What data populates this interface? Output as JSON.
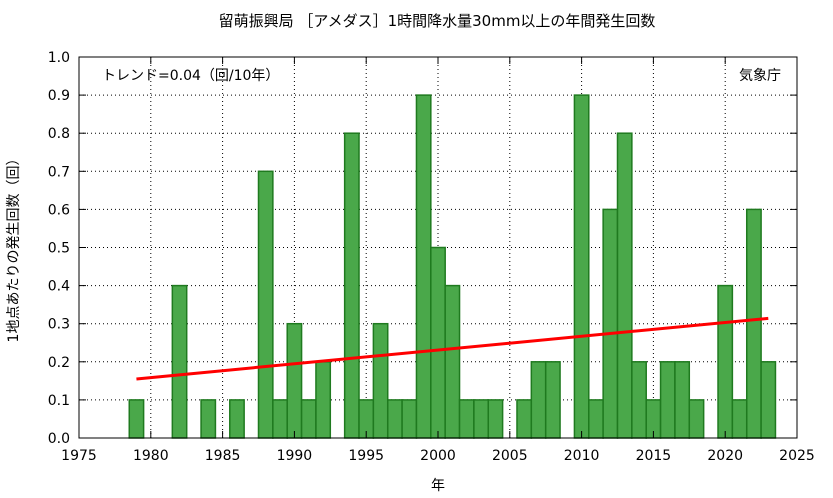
{
  "chart_data": {
    "type": "bar",
    "title": "留萌振興局 ［アメダス］1時間降水量30mm以上の年間発生回数",
    "xlabel": "年",
    "ylabel": "1地点あたりの発生回数（回）",
    "xlim": [
      1975,
      2025
    ],
    "ylim": [
      0.0,
      1.0
    ],
    "xticks": [
      1975,
      1980,
      1985,
      1990,
      1995,
      2000,
      2005,
      2010,
      2015,
      2020,
      2025
    ],
    "yticks": [
      0.0,
      0.1,
      0.2,
      0.3,
      0.4,
      0.5,
      0.6,
      0.7,
      0.8,
      0.9,
      1.0
    ],
    "grid": true,
    "x": [
      1979,
      1980,
      1981,
      1982,
      1983,
      1984,
      1985,
      1986,
      1987,
      1988,
      1989,
      1990,
      1991,
      1992,
      1993,
      1994,
      1995,
      1996,
      1997,
      1998,
      1999,
      2000,
      2001,
      2002,
      2003,
      2004,
      2005,
      2006,
      2007,
      2008,
      2009,
      2010,
      2011,
      2012,
      2013,
      2014,
      2015,
      2016,
      2017,
      2018,
      2019,
      2020,
      2021,
      2022,
      2023
    ],
    "values": [
      0.1,
      0,
      0,
      0.4,
      0,
      0.1,
      0,
      0.1,
      0,
      0.7,
      0.1,
      0.3,
      0.1,
      0.2,
      0,
      0.8,
      0.1,
      0.3,
      0.1,
      0.1,
      0.9,
      0.5,
      0.4,
      0.1,
      0.1,
      0.1,
      0,
      0.1,
      0.2,
      0.2,
      0,
      0.9,
      0.1,
      0.6,
      0.8,
      0.2,
      0.1,
      0.2,
      0.2,
      0.1,
      0,
      0.4,
      0.1,
      0.6,
      0.2
    ],
    "trend": {
      "x": [
        1979,
        2023
      ],
      "y": [
        0.155,
        0.314
      ]
    },
    "annotations": {
      "trend_label": "トレンド=0.04（回/10年）",
      "source": "気象庁"
    },
    "colors": {
      "bar_fill": "#4aa84a",
      "bar_stroke": "#1f7a1f",
      "trend_line": "#ff0000",
      "grid": "#000000"
    }
  }
}
